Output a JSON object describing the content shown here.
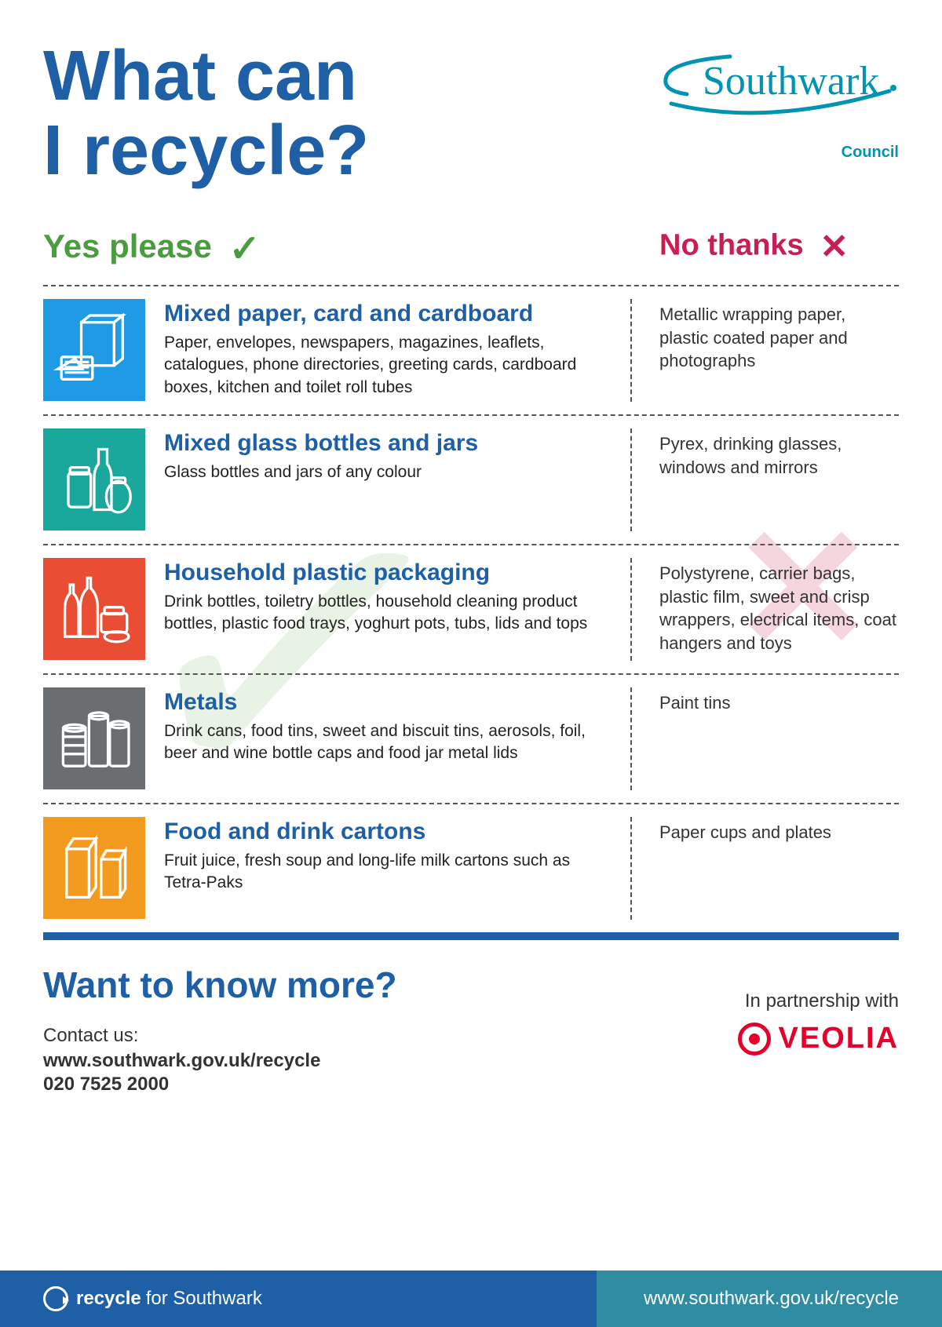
{
  "header": {
    "title": "What can\nI recycle?",
    "logo_text": "Southwark",
    "logo_subtext": "Council"
  },
  "column_headers": {
    "yes": "Yes please",
    "no": "No thanks"
  },
  "colors": {
    "title": "#1e5fa6",
    "yes": "#4a9d3f",
    "no": "#c71f52",
    "footer_left": "#1e5fa6",
    "footer_right": "#2f8ca3",
    "veolia": "#e4002b",
    "logo": "#0093b2"
  },
  "categories": [
    {
      "icon_bg": "#1e9be4",
      "title": "Mixed paper, card and cardboard",
      "desc": "Paper, envelopes, newspapers, magazines, leaflets, catalogues, phone directories, greeting cards, cardboard boxes, kitchen and toilet roll tubes",
      "no": "Metallic wrapping paper, plastic coated paper and photographs"
    },
    {
      "icon_bg": "#1aa89c",
      "title": "Mixed glass bottles and jars",
      "desc": "Glass bottles and jars of any colour",
      "no": "Pyrex, drinking glasses, windows and mirrors"
    },
    {
      "icon_bg": "#e94e35",
      "title": "Household plastic packaging",
      "desc": "Drink bottles, toiletry bottles, household cleaning product bottles, plastic food trays, yoghurt pots, tubs, lids and tops",
      "no": "Polystyrene, carrier bags, plastic film, sweet and crisp wrappers, electrical items, coat hangers and toys"
    },
    {
      "icon_bg": "#6b6e70",
      "title": "Metals",
      "desc": "Drink cans, food tins, sweet and biscuit tins, aerosols, foil, beer and wine bottle caps and food jar metal lids",
      "no": "Paint tins"
    },
    {
      "icon_bg": "#f39b1f",
      "title": "Food and drink cartons",
      "desc": "Fruit juice, fresh soup and long-life milk cartons such as Tetra-Paks",
      "no": "Paper cups and plates"
    }
  ],
  "more": {
    "title": "Want to know more?",
    "contact_label": "Contact us:",
    "url": "www.southwark.gov.uk/recycle",
    "phone": "020 7525 2000",
    "partner_label": "In partnership with",
    "partner_name": "VEOLIA"
  },
  "footer": {
    "recycle_bold": "recycle",
    "recycle_text": "for Southwark",
    "url": "www.southwark.gov.uk/recycle"
  }
}
